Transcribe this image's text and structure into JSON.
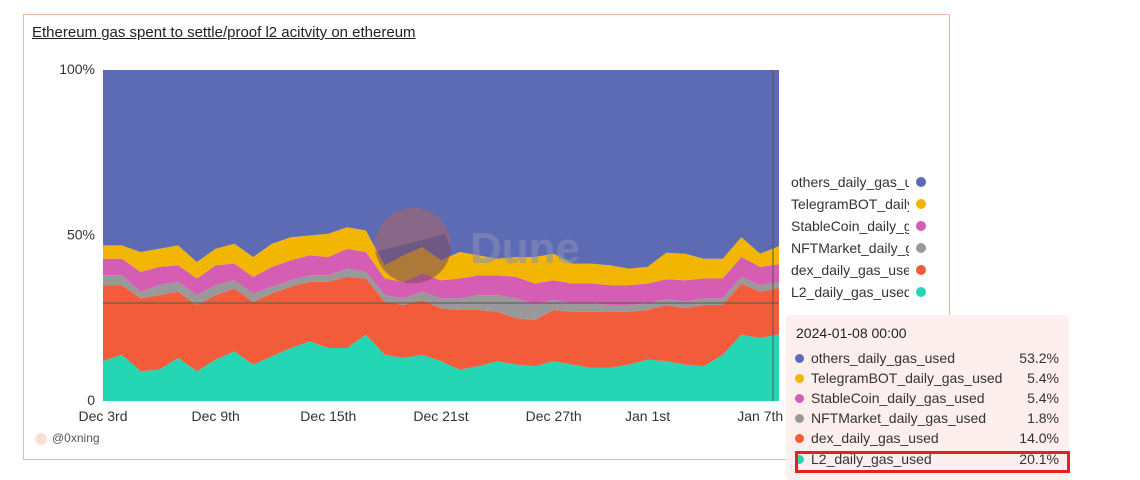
{
  "title": "Ethereum gas spent to settle/proof l2 acitvity on ethereum",
  "credit": "@0xning",
  "watermark": "Dune",
  "colors": {
    "others": "#5c6bb3",
    "telegram": "#f2b500",
    "stablecoin": "#d55db3",
    "nftmarket": "#999999",
    "dex": "#f25c3b",
    "l2": "#24d6b4"
  },
  "legend": [
    {
      "label": "others_daily_gas_used",
      "color": "#5c6bb3"
    },
    {
      "label": "TelegramBOT_daily_gas_used",
      "color": "#f2b500"
    },
    {
      "label": "StableCoin_daily_gas_used",
      "color": "#d55db3"
    },
    {
      "label": "NFTMarket_daily_gas_used",
      "color": "#999999"
    },
    {
      "label": "dex_daily_gas_used",
      "color": "#f25c3b"
    },
    {
      "label": "L2_daily_gas_used",
      "color": "#24d6b4"
    }
  ],
  "tooltip": {
    "date": "2024-01-08 00:00",
    "rows": [
      {
        "label": "others_daily_gas_used",
        "value": "53.2%",
        "color": "#5c6bb3"
      },
      {
        "label": "TelegramBOT_daily_gas_used",
        "value": "5.4%",
        "color": "#f2b500"
      },
      {
        "label": "StableCoin_daily_gas_used",
        "value": "5.4%",
        "color": "#d55db3"
      },
      {
        "label": "NFTMarket_daily_gas_used",
        "value": "1.8%",
        "color": "#999999"
      },
      {
        "label": "dex_daily_gas_used",
        "value": "14.0%",
        "color": "#f25c3b"
      },
      {
        "label": "L2_daily_gas_used",
        "value": "20.1%",
        "color": "#24d6b4"
      }
    ]
  },
  "chart_data": {
    "type": "area",
    "stacked": "percent",
    "title": "Ethereum gas spent to settle/proof l2 acitvity on ethereum",
    "y_ticks": [
      "0",
      "50%",
      "100%"
    ],
    "ylim": [
      0,
      100
    ],
    "x_ticks": [
      {
        "label": "Dec 3rd",
        "x": "2023-12-03"
      },
      {
        "label": "Dec 9th",
        "x": "2023-12-09"
      },
      {
        "label": "Dec 15th",
        "x": "2023-12-15"
      },
      {
        "label": "Dec 21st",
        "x": "2023-12-21"
      },
      {
        "label": "Dec 27th",
        "x": "2023-12-27"
      },
      {
        "label": "Jan 1st",
        "x": "2024-01-01"
      },
      {
        "label": "Jan 7th",
        "x": "2024-01-07"
      }
    ],
    "x": [
      "2023-12-03",
      "2023-12-04",
      "2023-12-05",
      "2023-12-06",
      "2023-12-07",
      "2023-12-08",
      "2023-12-09",
      "2023-12-10",
      "2023-12-11",
      "2023-12-12",
      "2023-12-13",
      "2023-12-14",
      "2023-12-15",
      "2023-12-16",
      "2023-12-17",
      "2023-12-18",
      "2023-12-19",
      "2023-12-20",
      "2023-12-21",
      "2023-12-22",
      "2023-12-23",
      "2023-12-24",
      "2023-12-25",
      "2023-12-26",
      "2023-12-27",
      "2023-12-28",
      "2023-12-29",
      "2023-12-30",
      "2023-12-31",
      "2024-01-01",
      "2024-01-02",
      "2024-01-03",
      "2024-01-04",
      "2024-01-05",
      "2024-01-06",
      "2024-01-07",
      "2024-01-08"
    ],
    "series": [
      {
        "name": "L2_daily_gas_used",
        "color": "#24d6b4",
        "values": [
          12,
          14,
          9,
          9.5,
          13,
          9,
          12.5,
          15,
          11,
          13.5,
          16,
          18,
          16,
          16,
          20,
          14,
          13,
          14,
          12,
          9.5,
          10.5,
          12,
          11,
          10.5,
          12,
          11,
          10,
          10,
          11,
          12.5,
          12,
          11,
          10.5,
          14,
          20,
          19,
          20.1
        ]
      },
      {
        "name": "dex_daily_gas_used",
        "color": "#f25c3b",
        "values": [
          23,
          21,
          22,
          22.5,
          20,
          20,
          19.5,
          19,
          19,
          19,
          18.5,
          18,
          20,
          21.5,
          17,
          16,
          16,
          16.5,
          16,
          18,
          17,
          15,
          14,
          14,
          15.5,
          16,
          17,
          17,
          16,
          15,
          17,
          17,
          18.5,
          15,
          15.5,
          14,
          14.0
        ]
      },
      {
        "name": "NFTMarket_daily_gas_used",
        "color": "#999999",
        "values": [
          3,
          3,
          2,
          3,
          3,
          3,
          3,
          2.5,
          2.5,
          2,
          2,
          2,
          2,
          2.5,
          2,
          2,
          2,
          2.5,
          3,
          3.5,
          4.5,
          5,
          6,
          4.5,
          3,
          2.5,
          2.5,
          2,
          2,
          2,
          1.8,
          2,
          2,
          2,
          2,
          2,
          1.8
        ]
      },
      {
        "name": "StableCoin_daily_gas_used",
        "color": "#d55db3",
        "values": [
          5,
          5,
          6,
          5.5,
          5,
          5,
          6,
          5,
          5,
          6,
          6,
          6,
          5.5,
          6,
          6,
          5,
          5,
          5.5,
          5.5,
          6,
          6,
          6,
          6.5,
          6.5,
          6,
          6,
          6,
          6,
          6,
          6,
          6,
          6.5,
          6,
          6,
          6,
          5.5,
          5.4
        ]
      },
      {
        "name": "TelegramBOT_daily_gas_used",
        "color": "#f2b500",
        "values": [
          4,
          4,
          6,
          5.5,
          6,
          5,
          5,
          6,
          6,
          7,
          7,
          6,
          7,
          6.5,
          6.5,
          4,
          8,
          8,
          6,
          8,
          6,
          5,
          6,
          8,
          8,
          6,
          6,
          6,
          5,
          5,
          8,
          8,
          6,
          6,
          6,
          4,
          5.4
        ]
      },
      {
        "name": "others_daily_gas_used",
        "color": "#5c6bb3",
        "values": [
          53,
          53,
          55,
          54,
          53,
          58,
          54,
          52.5,
          56.5,
          52.5,
          50.5,
          50,
          49.5,
          47.5,
          48.5,
          59,
          56,
          53.5,
          57.5,
          55,
          56,
          57,
          56.5,
          56.5,
          55.5,
          58.5,
          58.5,
          59,
          60,
          59.5,
          55.2,
          55.5,
          57,
          57,
          50.5,
          55.5,
          53.2
        ]
      }
    ]
  }
}
